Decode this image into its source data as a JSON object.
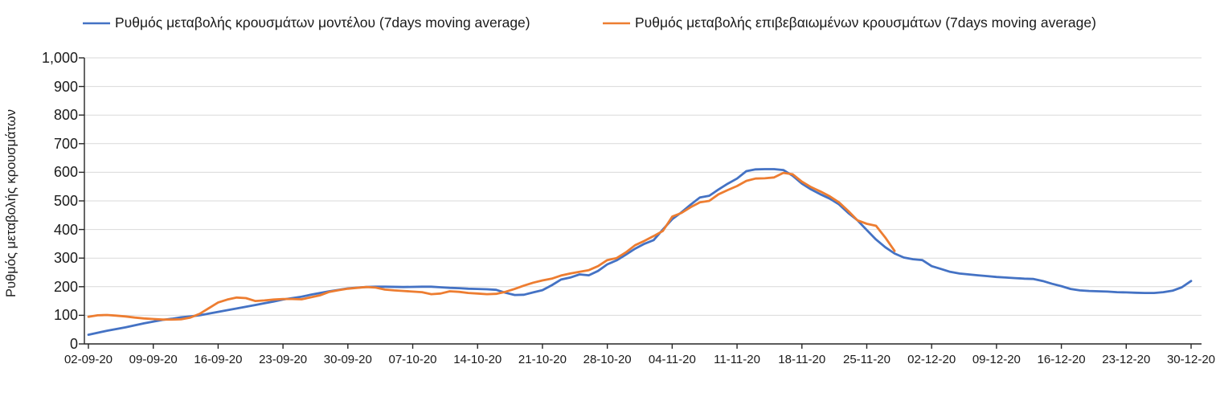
{
  "chart_data": {
    "type": "line",
    "title": "",
    "xlabel": "",
    "ylabel": "Ρυθμός μεταβολής κρουσμάτων",
    "ylim": [
      0,
      1000
    ],
    "y_tick_step": 100,
    "y_tick_labels": [
      "0",
      "100",
      "200",
      "300",
      "400",
      "500",
      "600",
      "700",
      "800",
      "900",
      "1,000"
    ],
    "x_tick_labels": [
      "02-09-20",
      "09-09-20",
      "16-09-20",
      "23-09-20",
      "30-09-20",
      "07-10-20",
      "14-10-20",
      "21-10-20",
      "28-10-20",
      "04-11-20",
      "11-11-20",
      "18-11-20",
      "25-11-20",
      "02-12-20",
      "09-12-20",
      "16-12-20",
      "23-12-20",
      "30-12-20"
    ],
    "x_tick_interval_days": 7,
    "x_range_days": [
      0,
      119
    ],
    "grid": "horizontal",
    "legend_position": "top",
    "colors": {
      "grid": "#d9d9d9",
      "axis": "#262626",
      "text": "#1a1a1a"
    },
    "series": [
      {
        "name": "Ρυθμός μεταβολής κρουσμάτων μοντέλου (7days moving average)",
        "color": "#4472c4",
        "points": [
          [
            0,
            32
          ],
          [
            1,
            39
          ],
          [
            2,
            46
          ],
          [
            3,
            52
          ],
          [
            4,
            58
          ],
          [
            5,
            65
          ],
          [
            6,
            72
          ],
          [
            7,
            78
          ],
          [
            8,
            84
          ],
          [
            9,
            88
          ],
          [
            10,
            93
          ],
          [
            11,
            96
          ],
          [
            12,
            100
          ],
          [
            13,
            106
          ],
          [
            14,
            112
          ],
          [
            15,
            118
          ],
          [
            16,
            124
          ],
          [
            17,
            130
          ],
          [
            18,
            136
          ],
          [
            19,
            142
          ],
          [
            20,
            148
          ],
          [
            21,
            155
          ],
          [
            22,
            160
          ],
          [
            23,
            165
          ],
          [
            24,
            172
          ],
          [
            25,
            178
          ],
          [
            26,
            184
          ],
          [
            27,
            189
          ],
          [
            28,
            194
          ],
          [
            29,
            197
          ],
          [
            30,
            199
          ],
          [
            31,
            200
          ],
          [
            32,
            200
          ],
          [
            34,
            199
          ],
          [
            36,
            200
          ],
          [
            37,
            200
          ],
          [
            38,
            198
          ],
          [
            39,
            196
          ],
          [
            40,
            195
          ],
          [
            41,
            193
          ],
          [
            42,
            192
          ],
          [
            43,
            191
          ],
          [
            44,
            189
          ],
          [
            45,
            179
          ],
          [
            46,
            171
          ],
          [
            47,
            172
          ],
          [
            48,
            180
          ],
          [
            49,
            188
          ],
          [
            50,
            205
          ],
          [
            51,
            225
          ],
          [
            52,
            232
          ],
          [
            53,
            243
          ],
          [
            54,
            240
          ],
          [
            55,
            255
          ],
          [
            56,
            278
          ],
          [
            57,
            292
          ],
          [
            58,
            312
          ],
          [
            59,
            333
          ],
          [
            60,
            350
          ],
          [
            61,
            363
          ],
          [
            62,
            400
          ],
          [
            63,
            436
          ],
          [
            64,
            460
          ],
          [
            65,
            487
          ],
          [
            66,
            512
          ],
          [
            67,
            518
          ],
          [
            68,
            540
          ],
          [
            69,
            560
          ],
          [
            70,
            578
          ],
          [
            71,
            604
          ],
          [
            72,
            610
          ],
          [
            73,
            611
          ],
          [
            74,
            611
          ],
          [
            75,
            608
          ],
          [
            76,
            588
          ],
          [
            77,
            560
          ],
          [
            78,
            540
          ],
          [
            79,
            523
          ],
          [
            80,
            508
          ],
          [
            81,
            488
          ],
          [
            82,
            458
          ],
          [
            83,
            432
          ],
          [
            84,
            398
          ],
          [
            85,
            365
          ],
          [
            86,
            338
          ],
          [
            87,
            316
          ],
          [
            88,
            302
          ],
          [
            89,
            296
          ],
          [
            90,
            293
          ],
          [
            91,
            272
          ],
          [
            92,
            262
          ],
          [
            93,
            252
          ],
          [
            94,
            246
          ],
          [
            95,
            243
          ],
          [
            96,
            240
          ],
          [
            97,
            237
          ],
          [
            98,
            234
          ],
          [
            99,
            232
          ],
          [
            100,
            230
          ],
          [
            101,
            228
          ],
          [
            102,
            227
          ],
          [
            103,
            220
          ],
          [
            104,
            210
          ],
          [
            105,
            202
          ],
          [
            106,
            192
          ],
          [
            107,
            187
          ],
          [
            108,
            185
          ],
          [
            109,
            184
          ],
          [
            110,
            183
          ],
          [
            111,
            181
          ],
          [
            112,
            180
          ],
          [
            113,
            179
          ],
          [
            114,
            178
          ],
          [
            115,
            178
          ],
          [
            116,
            181
          ],
          [
            117,
            186
          ],
          [
            118,
            198
          ],
          [
            119,
            220
          ]
        ]
      },
      {
        "name": "Ρυθμός μεταβολής επιβεβαιωμένων κρουσμάτων (7days moving average)",
        "color": "#ed7d31",
        "points": [
          [
            0,
            95
          ],
          [
            1,
            100
          ],
          [
            2,
            101
          ],
          [
            3,
            99
          ],
          [
            4,
            96
          ],
          [
            5,
            92
          ],
          [
            6,
            89
          ],
          [
            7,
            87
          ],
          [
            8,
            85
          ],
          [
            9,
            85
          ],
          [
            10,
            86
          ],
          [
            11,
            92
          ],
          [
            12,
            105
          ],
          [
            13,
            125
          ],
          [
            14,
            145
          ],
          [
            15,
            155
          ],
          [
            16,
            162
          ],
          [
            17,
            160
          ],
          [
            18,
            150
          ],
          [
            19,
            152
          ],
          [
            20,
            155
          ],
          [
            21,
            157
          ],
          [
            22,
            157
          ],
          [
            23,
            156
          ],
          [
            24,
            163
          ],
          [
            25,
            170
          ],
          [
            26,
            182
          ],
          [
            27,
            188
          ],
          [
            28,
            193
          ],
          [
            29,
            196
          ],
          [
            30,
            199
          ],
          [
            31,
            197
          ],
          [
            32,
            190
          ],
          [
            33,
            187
          ],
          [
            34,
            185
          ],
          [
            35,
            183
          ],
          [
            36,
            181
          ],
          [
            37,
            174
          ],
          [
            38,
            176
          ],
          [
            39,
            184
          ],
          [
            40,
            182
          ],
          [
            41,
            178
          ],
          [
            42,
            176
          ],
          [
            43,
            174
          ],
          [
            44,
            175
          ],
          [
            45,
            182
          ],
          [
            46,
            192
          ],
          [
            47,
            204
          ],
          [
            48,
            214
          ],
          [
            49,
            222
          ],
          [
            50,
            228
          ],
          [
            51,
            239
          ],
          [
            52,
            246
          ],
          [
            53,
            252
          ],
          [
            54,
            258
          ],
          [
            55,
            272
          ],
          [
            56,
            293
          ],
          [
            57,
            300
          ],
          [
            58,
            320
          ],
          [
            59,
            345
          ],
          [
            60,
            360
          ],
          [
            61,
            377
          ],
          [
            62,
            395
          ],
          [
            63,
            445
          ],
          [
            64,
            458
          ],
          [
            65,
            478
          ],
          [
            66,
            495
          ],
          [
            67,
            500
          ],
          [
            68,
            523
          ],
          [
            69,
            538
          ],
          [
            70,
            552
          ],
          [
            71,
            570
          ],
          [
            72,
            578
          ],
          [
            73,
            579
          ],
          [
            74,
            582
          ],
          [
            75,
            598
          ],
          [
            76,
            593
          ],
          [
            77,
            567
          ],
          [
            78,
            548
          ],
          [
            79,
            533
          ],
          [
            80,
            516
          ],
          [
            81,
            495
          ],
          [
            82,
            465
          ],
          [
            83,
            432
          ],
          [
            84,
            420
          ],
          [
            85,
            413
          ],
          [
            86,
            372
          ],
          [
            87,
            325
          ]
        ]
      }
    ]
  }
}
